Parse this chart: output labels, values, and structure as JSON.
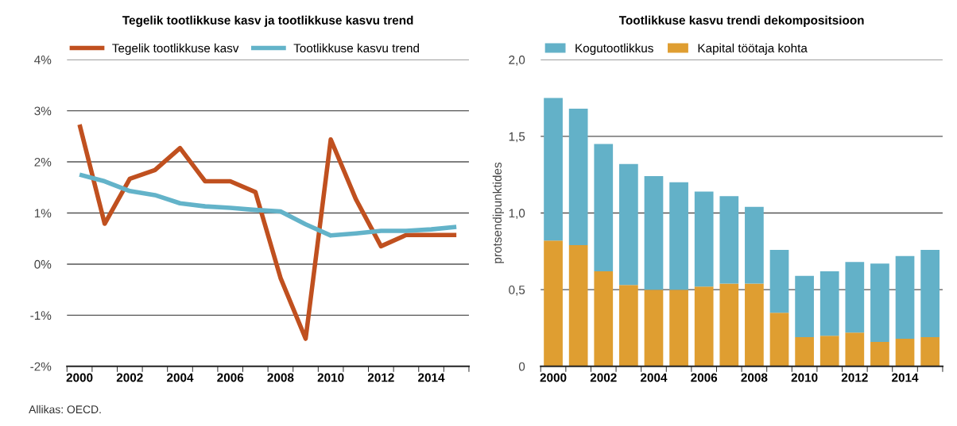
{
  "chart_data": [
    {
      "type": "line",
      "title": "Tegelik tootlikkuse kasv ja tootlikkuse kasvu trend",
      "categories": [
        "2000",
        null,
        "2002",
        null,
        "2004",
        null,
        "2006",
        null,
        "2008",
        null,
        "2010",
        null,
        "2012",
        null,
        "2014",
        null
      ],
      "series": [
        {
          "name": "Tegelik tootlikkuse kasv",
          "color": "#c0501f",
          "values": [
            2.73,
            0.79,
            1.67,
            1.84,
            2.27,
            1.62,
            1.62,
            1.41,
            -0.27,
            -1.46,
            2.44,
            1.27,
            0.35,
            0.57,
            0.57,
            0.57
          ]
        },
        {
          "name": "Tootlikkuse kasvu trend",
          "color": "#63b3c9",
          "values": [
            1.75,
            1.62,
            1.43,
            1.35,
            1.19,
            1.13,
            1.1,
            1.06,
            1.03,
            0.78,
            0.56,
            0.6,
            0.65,
            0.65,
            0.68,
            0.73
          ]
        }
      ],
      "ylim": [
        -2,
        4
      ],
      "yticks": [
        {
          "value": -2,
          "label": "-2%"
        },
        {
          "value": -1,
          "label": "-1%"
        },
        {
          "value": 0,
          "label": "0%"
        },
        {
          "value": 1,
          "label": "1%"
        },
        {
          "value": 2,
          "label": "2%"
        },
        {
          "value": 3,
          "label": "3%"
        },
        {
          "value": 4,
          "label": "4%"
        }
      ],
      "grid": "y",
      "legend": "top",
      "marker": "none",
      "line_style": "solid",
      "annotations": [
        "Allikas: OECD."
      ]
    },
    {
      "type": "bar",
      "title": "Tootlikkuse kasvu trendi dekompositsioon",
      "ylabel": "protsendipunktides",
      "stacked": true,
      "categories": [
        "2000",
        null,
        "2002",
        null,
        "2004",
        null,
        "2006",
        null,
        "2008",
        null,
        "2010",
        null,
        "2012",
        null,
        "2014",
        null
      ],
      "series": [
        {
          "name": "Kapital töötaja kohta",
          "color": "#df9e31",
          "values": [
            0.82,
            0.79,
            0.62,
            0.53,
            0.5,
            0.5,
            0.52,
            0.54,
            0.54,
            0.35,
            0.19,
            0.2,
            0.22,
            0.16,
            0.18,
            0.19
          ]
        },
        {
          "name": "Kogutootlikkus",
          "color": "#63b1c8",
          "values": [
            0.93,
            0.89,
            0.83,
            0.79,
            0.74,
            0.7,
            0.62,
            0.57,
            0.5,
            0.41,
            0.4,
            0.42,
            0.46,
            0.51,
            0.54,
            0.57
          ]
        }
      ],
      "ylim": [
        0,
        2
      ],
      "yticks": [
        {
          "value": 0,
          "label": "0"
        },
        {
          "value": 0.5,
          "label": "0,5"
        },
        {
          "value": 1,
          "label": "1,0"
        },
        {
          "value": 1.5,
          "label": "1,5"
        },
        {
          "value": 2,
          "label": "2,0"
        }
      ],
      "grid": "y",
      "legend": "top"
    }
  ]
}
